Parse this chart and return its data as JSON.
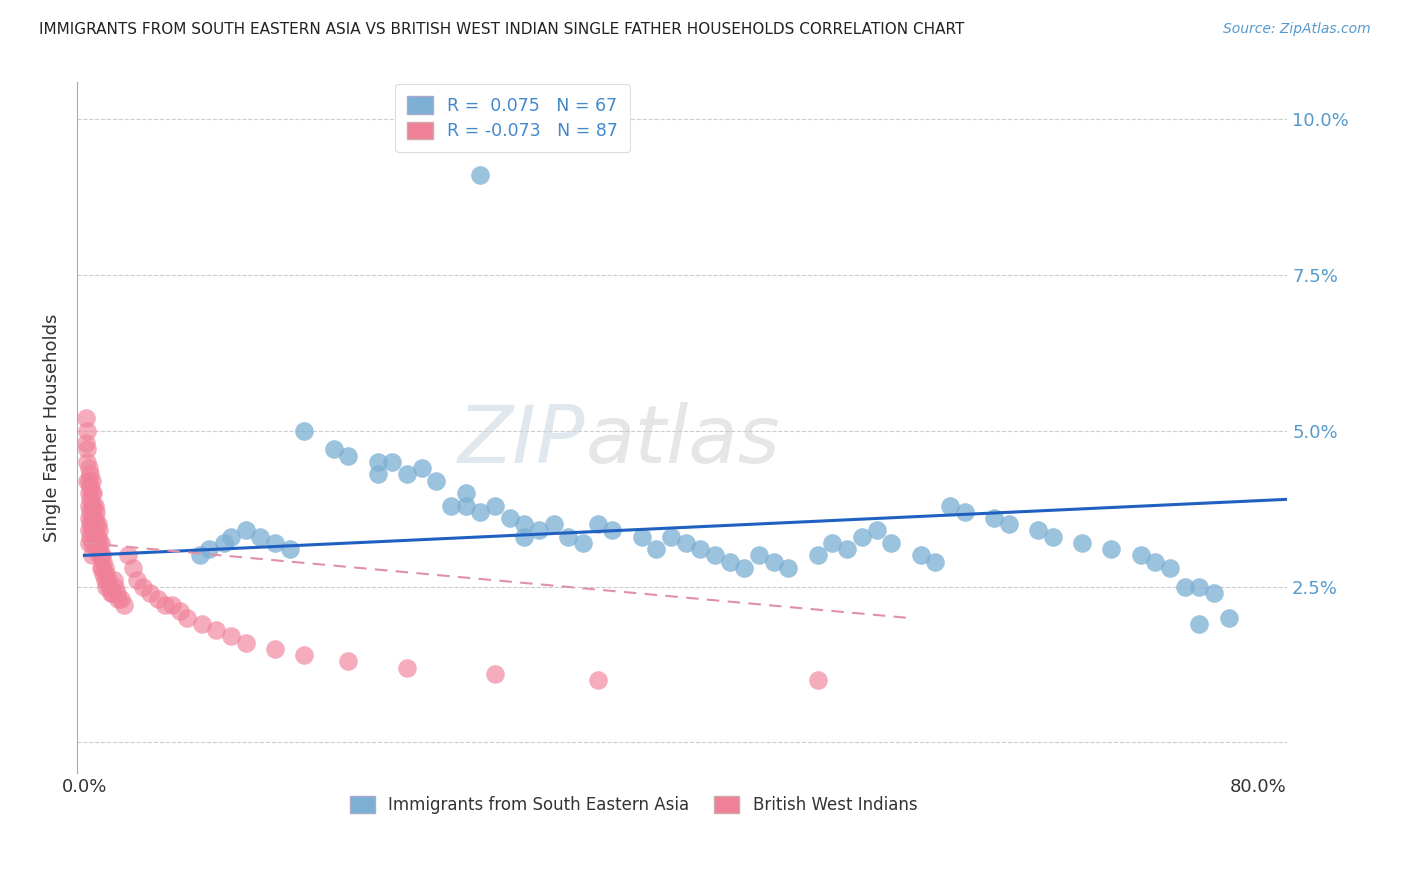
{
  "title": "IMMIGRANTS FROM SOUTH EASTERN ASIA VS BRITISH WEST INDIAN SINGLE FATHER HOUSEHOLDS CORRELATION CHART",
  "source": "Source: ZipAtlas.com",
  "ylabel": "Single Father Households",
  "legend_entries": [
    {
      "label": "R =  0.075   N = 67",
      "color": "#a8c4e0"
    },
    {
      "label": "R = -0.073   N = 87",
      "color": "#f4a0b0"
    }
  ],
  "legend_label1": "Immigrants from South Eastern Asia",
  "legend_label2": "British West Indians",
  "color_blue": "#7bafd4",
  "color_pink": "#f08098",
  "color_blue_line": "#2060c0",
  "color_pink_line": "#e090a8",
  "watermark_zip": "ZIP",
  "watermark_atlas": "atlas",
  "R_blue": 0.075,
  "N_blue": 67,
  "R_pink": -0.073,
  "N_pink": 87,
  "xlim": [
    -0.005,
    0.82
  ],
  "ylim": [
    -0.005,
    0.106
  ],
  "yticks": [
    0.0,
    0.025,
    0.05,
    0.075,
    0.1
  ],
  "ytick_labels": [
    "",
    "2.5%",
    "5.0%",
    "7.5%",
    "10.0%"
  ],
  "xticks": [
    0.0,
    0.1,
    0.2,
    0.3,
    0.4,
    0.5,
    0.6,
    0.7,
    0.8
  ],
  "blue_scatter_x": [
    0.27,
    0.15,
    0.17,
    0.18,
    0.2,
    0.2,
    0.21,
    0.22,
    0.23,
    0.24,
    0.25,
    0.26,
    0.26,
    0.27,
    0.28,
    0.29,
    0.3,
    0.3,
    0.31,
    0.32,
    0.33,
    0.34,
    0.35,
    0.36,
    0.38,
    0.39,
    0.4,
    0.41,
    0.42,
    0.43,
    0.44,
    0.45,
    0.46,
    0.47,
    0.48,
    0.5,
    0.51,
    0.52,
    0.53,
    0.54,
    0.55,
    0.57,
    0.58,
    0.59,
    0.6,
    0.62,
    0.63,
    0.65,
    0.66,
    0.68,
    0.7,
    0.72,
    0.73,
    0.74,
    0.75,
    0.76,
    0.77,
    0.78,
    0.079,
    0.085,
    0.095,
    0.1,
    0.11,
    0.12,
    0.13,
    0.14,
    0.76
  ],
  "blue_scatter_y": [
    0.091,
    0.05,
    0.047,
    0.046,
    0.045,
    0.043,
    0.045,
    0.043,
    0.044,
    0.042,
    0.038,
    0.04,
    0.038,
    0.037,
    0.038,
    0.036,
    0.035,
    0.033,
    0.034,
    0.035,
    0.033,
    0.032,
    0.035,
    0.034,
    0.033,
    0.031,
    0.033,
    0.032,
    0.031,
    0.03,
    0.029,
    0.028,
    0.03,
    0.029,
    0.028,
    0.03,
    0.032,
    0.031,
    0.033,
    0.034,
    0.032,
    0.03,
    0.029,
    0.038,
    0.037,
    0.036,
    0.035,
    0.034,
    0.033,
    0.032,
    0.031,
    0.03,
    0.029,
    0.028,
    0.025,
    0.025,
    0.024,
    0.02,
    0.03,
    0.031,
    0.032,
    0.033,
    0.034,
    0.033,
    0.032,
    0.031,
    0.019
  ],
  "pink_scatter_x": [
    0.001,
    0.001,
    0.002,
    0.002,
    0.002,
    0.002,
    0.003,
    0.003,
    0.003,
    0.003,
    0.003,
    0.003,
    0.003,
    0.004,
    0.004,
    0.004,
    0.004,
    0.004,
    0.004,
    0.005,
    0.005,
    0.005,
    0.005,
    0.005,
    0.005,
    0.005,
    0.006,
    0.006,
    0.006,
    0.006,
    0.006,
    0.007,
    0.007,
    0.007,
    0.007,
    0.008,
    0.008,
    0.008,
    0.008,
    0.009,
    0.009,
    0.009,
    0.01,
    0.01,
    0.01,
    0.011,
    0.011,
    0.011,
    0.012,
    0.012,
    0.013,
    0.013,
    0.014,
    0.014,
    0.015,
    0.015,
    0.016,
    0.017,
    0.018,
    0.019,
    0.02,
    0.021,
    0.022,
    0.023,
    0.025,
    0.027,
    0.03,
    0.033,
    0.036,
    0.04,
    0.045,
    0.05,
    0.055,
    0.06,
    0.065,
    0.07,
    0.08,
    0.09,
    0.1,
    0.11,
    0.13,
    0.15,
    0.18,
    0.22,
    0.28,
    0.35,
    0.5
  ],
  "pink_scatter_y": [
    0.052,
    0.048,
    0.05,
    0.047,
    0.045,
    0.042,
    0.044,
    0.042,
    0.04,
    0.038,
    0.036,
    0.034,
    0.032,
    0.043,
    0.041,
    0.039,
    0.037,
    0.035,
    0.033,
    0.042,
    0.04,
    0.038,
    0.036,
    0.034,
    0.032,
    0.03,
    0.04,
    0.038,
    0.036,
    0.034,
    0.032,
    0.038,
    0.036,
    0.034,
    0.032,
    0.037,
    0.035,
    0.033,
    0.031,
    0.035,
    0.033,
    0.031,
    0.034,
    0.032,
    0.03,
    0.032,
    0.03,
    0.028,
    0.03,
    0.028,
    0.029,
    0.027,
    0.028,
    0.026,
    0.027,
    0.025,
    0.026,
    0.025,
    0.024,
    0.024,
    0.026,
    0.025,
    0.024,
    0.023,
    0.023,
    0.022,
    0.03,
    0.028,
    0.026,
    0.025,
    0.024,
    0.023,
    0.022,
    0.022,
    0.021,
    0.02,
    0.019,
    0.018,
    0.017,
    0.016,
    0.015,
    0.014,
    0.013,
    0.012,
    0.011,
    0.01,
    0.01
  ]
}
